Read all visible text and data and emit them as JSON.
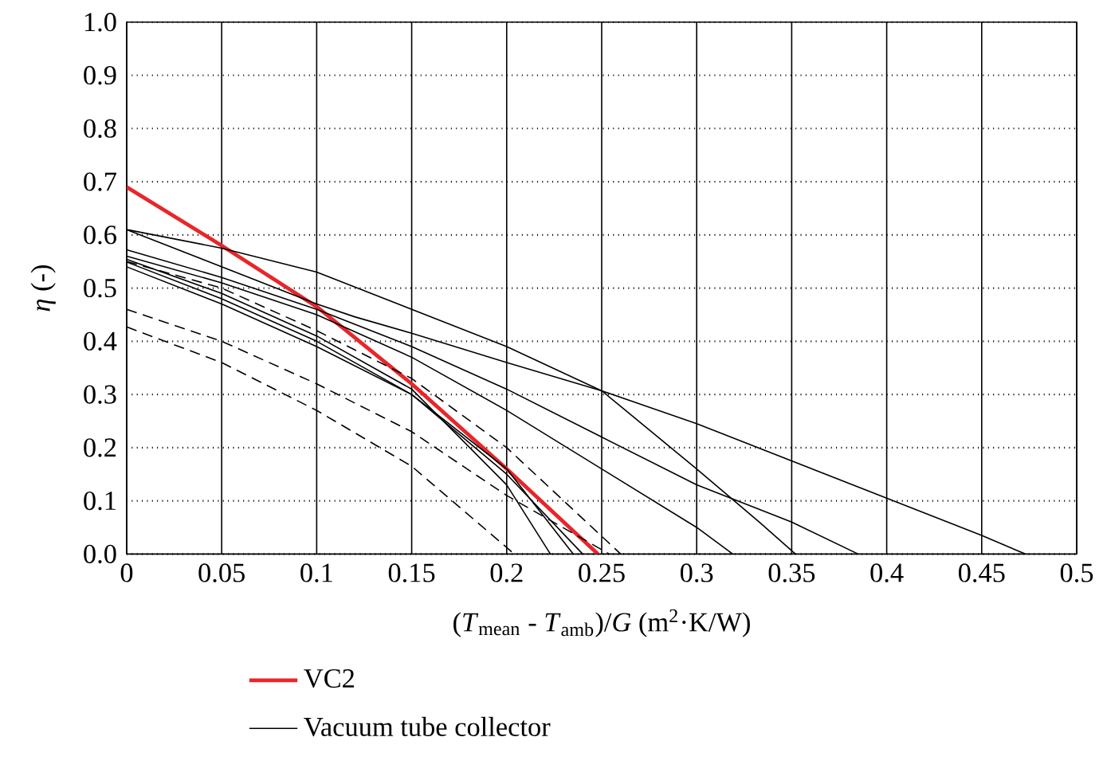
{
  "chart_data": {
    "type": "line",
    "xlabel": "(*T*$_{mean}$ - *T*$_{amb}$)/*G*  (m$^{2}$·K/W)",
    "ylabel": "*η* (-)",
    "xlim": [
      0,
      0.5
    ],
    "ylim": [
      0,
      1.0
    ],
    "xticks": [
      0,
      0.05,
      0.1,
      0.15,
      0.2,
      0.25,
      0.3,
      0.35,
      0.4,
      0.45,
      0.5
    ],
    "yticks": [
      {
        "value": 0,
        "label": "0.0"
      },
      0.1,
      0.2,
      0.3,
      0.4,
      0.5,
      0.6,
      0.7,
      0.8,
      0.9,
      {
        "value": 1.0,
        "label": "1.0"
      }
    ],
    "grid": true,
    "legend": "bottom",
    "marker": "none",
    "series": [
      {
        "name": "VC2",
        "color": "#e8262a",
        "x": [
          0,
          0.05,
          0.1,
          0.15,
          0.2,
          0.248
        ],
        "values": [
          0.69,
          0.58,
          0.465,
          0.32,
          0.16,
          0
        ]
      },
      {
        "name": "Vacuum tube collector",
        "color": "#000000",
        "x": [
          0,
          0.05,
          0.1,
          0.12,
          0.15,
          0.2,
          0.25,
          0.3,
          0.35,
          0.4,
          0.45,
          0.473
        ],
        "values": [
          0.61,
          0.54,
          0.47,
          0.446,
          0.415,
          0.36,
          0.307,
          0.245,
          0.175,
          0.105,
          0.035,
          0
        ]
      },
      {
        "color": "#000000",
        "x": [
          0,
          0.05,
          0.1,
          0.15,
          0.2,
          0.25,
          0.3,
          0.333,
          0.352
        ],
        "values": [
          0.61,
          0.575,
          0.53,
          0.46,
          0.39,
          0.307,
          0.16,
          0.06,
          0
        ]
      },
      {
        "color": "#000000",
        "x": [
          0,
          0.05,
          0.1,
          0.15,
          0.2,
          0.25,
          0.3,
          0.35,
          0.385
        ],
        "values": [
          0.572,
          0.52,
          0.46,
          0.39,
          0.31,
          0.22,
          0.13,
          0.06,
          0
        ]
      },
      {
        "color": "#000000",
        "x": [
          0,
          0.05,
          0.1,
          0.15,
          0.2,
          0.25,
          0.3,
          0.319
        ],
        "values": [
          0.56,
          0.51,
          0.45,
          0.37,
          0.27,
          0.16,
          0.05,
          0
        ]
      },
      {
        "color": "#000000",
        "x": [
          0,
          0.05,
          0.1,
          0.15,
          0.2,
          0.223
        ],
        "values": [
          0.554,
          0.49,
          0.41,
          0.31,
          0.13,
          0
        ]
      },
      {
        "color": "#000000",
        "x": [
          0,
          0.05,
          0.1,
          0.15,
          0.2,
          0.24
        ],
        "values": [
          0.549,
          0.48,
          0.4,
          0.3,
          0.15,
          0
        ]
      },
      {
        "color": "#000000",
        "x": [
          0,
          0.05,
          0.1,
          0.15,
          0.2,
          0.235
        ],
        "values": [
          0.54,
          0.47,
          0.39,
          0.3,
          0.16,
          0
        ]
      },
      {
        "color": "#000000",
        "line_style": "dashed",
        "x": [
          0,
          0.05,
          0.1,
          0.15,
          0.2,
          0.26
        ],
        "values": [
          0.55,
          0.5,
          0.42,
          0.33,
          0.2,
          0
        ]
      },
      {
        "color": "#000000",
        "line_style": "dashed",
        "x": [
          0,
          0.05,
          0.1,
          0.15,
          0.2,
          0.254
        ],
        "values": [
          0.46,
          0.4,
          0.32,
          0.23,
          0.11,
          0
        ]
      },
      {
        "color": "#000000",
        "line_style": "dashed",
        "x": [
          0,
          0.05,
          0.1,
          0.15,
          0.204
        ],
        "values": [
          0.427,
          0.36,
          0.27,
          0.165,
          0
        ]
      }
    ]
  }
}
